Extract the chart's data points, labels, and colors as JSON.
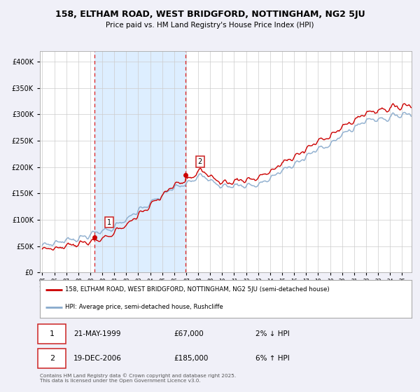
{
  "title_line1": "158, ELTHAM ROAD, WEST BRIDGFORD, NOTTINGHAM, NG2 5JU",
  "title_line2": "Price paid vs. HM Land Registry's House Price Index (HPI)",
  "legend_red": "158, ELTHAM ROAD, WEST BRIDGFORD, NOTTINGHAM, NG2 5JU (semi-detached house)",
  "legend_blue": "HPI: Average price, semi-detached house, Rushcliffe",
  "purchase1_date": "21-MAY-1999",
  "purchase1_price": "£67,000",
  "purchase1_hpi": "2% ↓ HPI",
  "purchase1_x": 1999.38,
  "purchase1_y": 67000,
  "purchase2_date": "19-DEC-2006",
  "purchase2_price": "£185,000",
  "purchase2_hpi": "6% ↑ HPI",
  "purchase2_x": 2006.96,
  "purchase2_y": 185000,
  "shade_color": "#ddeeff",
  "vline_color": "#dd2222",
  "background_color": "#f0f0f8",
  "plot_bg_color": "#ffffff",
  "grid_color": "#cccccc",
  "red_line_color": "#cc0000",
  "blue_line_color": "#88aacc",
  "ylim": [
    0,
    420000
  ],
  "xlim_start": 1994.8,
  "xlim_end": 2025.8,
  "ylabel_ticks": [
    0,
    50000,
    100000,
    150000,
    200000,
    250000,
    300000,
    350000,
    400000
  ],
  "ylabel_labels": [
    "£0",
    "£50K",
    "£100K",
    "£150K",
    "£200K",
    "£250K",
    "£300K",
    "£350K",
    "£400K"
  ],
  "xtick_years": [
    1995,
    1996,
    1997,
    1998,
    1999,
    2000,
    2001,
    2002,
    2003,
    2004,
    2005,
    2006,
    2007,
    2008,
    2009,
    2010,
    2011,
    2012,
    2013,
    2014,
    2015,
    2016,
    2017,
    2018,
    2019,
    2020,
    2021,
    2022,
    2023,
    2024,
    2025
  ],
  "footnote": "Contains HM Land Registry data © Crown copyright and database right 2025.\nThis data is licensed under the Open Government Licence v3.0."
}
